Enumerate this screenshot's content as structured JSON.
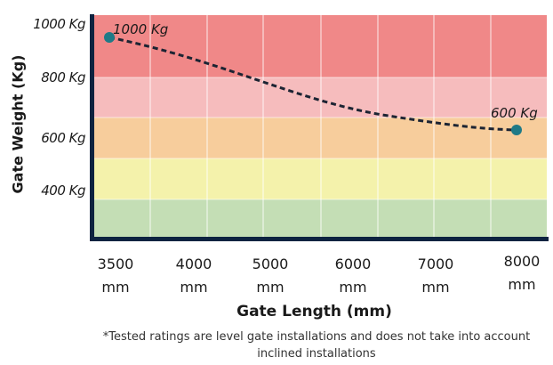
{
  "chart_data": {
    "type": "line",
    "title": "",
    "xlabel": "Gate Length (mm)",
    "ylabel": "Gate Weight (Kg)",
    "x_ticks": [
      {
        "value": "3500",
        "unit": "mm"
      },
      {
        "value": "4000",
        "unit": "mm"
      },
      {
        "value": "5000",
        "unit": "mm"
      },
      {
        "value": "6000",
        "unit": "mm"
      },
      {
        "value": "7000",
        "unit": "mm"
      },
      {
        "value": "8000",
        "unit": "mm"
      }
    ],
    "y_ticks": [
      "1000 Kg",
      "800 Kg",
      "600 Kg",
      "400 Kg"
    ],
    "points": [
      {
        "x": 3500,
        "y": 1000,
        "label": "1000 Kg"
      },
      {
        "x": 8000,
        "y": 600,
        "label": "600 Kg"
      }
    ],
    "line_style": "dashed",
    "grid": true,
    "bands_colors": [
      "#f08888",
      "#f6bcbd",
      "#f7cd9c",
      "#f4f2ab",
      "#c4deb5"
    ],
    "point_color": "#1f7a87",
    "axis_color": "#0d2340"
  },
  "footnote_line1": "*Tested ratings are level gate installations and does not take into account",
  "footnote_line2": "inclined installations"
}
